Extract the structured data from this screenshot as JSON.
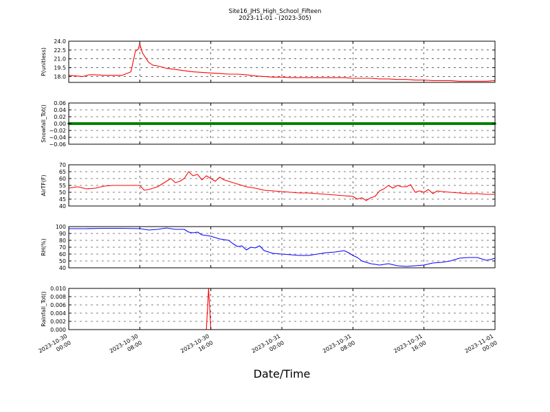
{
  "chart_data": {
    "type": "line",
    "title": "Site16_JHS_High_School_Fifteen",
    "subtitle": "2023-11-01 - (2023-305)",
    "xlabel": "Date/Time",
    "x_ticks": [
      {
        "hours": 0,
        "line1": "2023-10-30",
        "line2": "00:00"
      },
      {
        "hours": 8,
        "line1": "2023-10-30",
        "line2": "08:00"
      },
      {
        "hours": 16,
        "line1": "2023-10-30",
        "line2": "16:00"
      },
      {
        "hours": 24,
        "line1": "2023-10-31",
        "line2": "00:00"
      },
      {
        "hours": 32,
        "line1": "2023-10-31",
        "line2": "08:00"
      },
      {
        "hours": 40,
        "line1": "2023-10-31",
        "line2": "16:00"
      },
      {
        "hours": 48,
        "line1": "2023-11-01",
        "line2": "00:00"
      }
    ],
    "xlim_hours": [
      0,
      48
    ],
    "grid": true,
    "panels": [
      {
        "ylabel": "P(unitless)",
        "color": "#ff0000",
        "ylim": [
          17.0,
          24.0
        ],
        "yticks": [
          18.0,
          19.5,
          21.0,
          22.5,
          24.0
        ],
        "ytick_labels": [
          "18.0",
          "19.5",
          "21.0",
          "22.5",
          "24.0"
        ],
        "series": [
          {
            "x": [
              0,
              0.8,
              1.6,
              2.3,
              3,
              4,
              5,
              6,
              7,
              7.5,
              7.8,
              8.0,
              8.3,
              8.6,
              9,
              9.5,
              10,
              11,
              12,
              13,
              14,
              15,
              16,
              17,
              18,
              19,
              20,
              21,
              22,
              23,
              24,
              25,
              26,
              27,
              28,
              29,
              30,
              31,
              32,
              33,
              34,
              35,
              36,
              37,
              38,
              39,
              40,
              41,
              42,
              43,
              44,
              45,
              46,
              47,
              48
            ],
            "y": [
              18.2,
              18.1,
              18.0,
              18.3,
              18.3,
              18.2,
              18.2,
              18.2,
              18.8,
              22.3,
              22.6,
              23.6,
              22.0,
              21.3,
              20.4,
              19.9,
              19.8,
              19.4,
              19.2,
              19.0,
              18.8,
              18.7,
              18.6,
              18.5,
              18.4,
              18.4,
              18.3,
              18.1,
              18.0,
              17.9,
              17.9,
              17.8,
              17.8,
              17.8,
              17.8,
              17.8,
              17.8,
              17.8,
              17.7,
              17.7,
              17.7,
              17.6,
              17.6,
              17.5,
              17.5,
              17.4,
              17.4,
              17.3,
              17.3,
              17.3,
              17.2,
              17.2,
              17.2,
              17.2,
              17.3
            ]
          }
        ]
      },
      {
        "ylabel": "Snowfall_Tot()",
        "color": "#008000",
        "ylim": [
          -0.06,
          0.06
        ],
        "yticks": [
          -0.06,
          -0.04,
          -0.02,
          0.0,
          0.02,
          0.04,
          0.06
        ],
        "ytick_labels": [
          "−0.06",
          "−0.04",
          "−0.02",
          "0.00",
          "0.02",
          "0.04",
          "0.06"
        ],
        "series": [
          {
            "x": [
              0,
              48
            ],
            "y": [
              0.0,
              0.0
            ]
          }
        ]
      },
      {
        "ylabel": "AirTF(F)",
        "color": "#ff0000",
        "ylim": [
          40,
          70
        ],
        "yticks": [
          40,
          45,
          50,
          55,
          60,
          65,
          70
        ],
        "ytick_labels": [
          "40",
          "45",
          "50",
          "55",
          "60",
          "65",
          "70"
        ],
        "series": [
          {
            "x": [
              0,
              1,
              2,
              3,
              4,
              5,
              6,
              7,
              8,
              8.5,
              9,
              10,
              11,
              11.5,
              12,
              12.5,
              13,
              13.5,
              14,
              14.5,
              15,
              15.5,
              16,
              16.5,
              17,
              17.5,
              18,
              19,
              20,
              21,
              22,
              23,
              24,
              25,
              26,
              27,
              28,
              29,
              30,
              31,
              32,
              32.5,
              33,
              33.5,
              34,
              34.5,
              35,
              35.5,
              36,
              36.5,
              37,
              37.5,
              38,
              38.5,
              39,
              39.5,
              40,
              40.5,
              41,
              41.5,
              42,
              43,
              44,
              45,
              46,
              47,
              48
            ],
            "y": [
              53,
              54,
              52.5,
              53,
              54.5,
              55,
              55,
              55,
              55,
              51.5,
              52,
              54,
              58,
              60,
              57,
              58,
              60,
              65,
              62,
              63,
              59,
              62,
              60,
              58,
              61,
              59,
              58,
              56,
              54,
              53,
              51.5,
              51,
              50.5,
              50,
              49.5,
              49.5,
              49,
              48.5,
              48,
              47.5,
              47,
              45,
              46,
              44,
              46,
              47,
              51,
              52.5,
              55,
              53,
              55,
              54,
              54,
              55.5,
              50,
              51,
              50,
              52,
              49,
              51,
              50.5,
              50,
              49.5,
              49,
              49,
              48.5,
              48.5
            ]
          }
        ]
      },
      {
        "ylabel": "RH(%)",
        "color": "#0000ff",
        "ylim": [
          40,
          100
        ],
        "yticks": [
          40,
          50,
          60,
          70,
          80,
          90,
          100
        ],
        "ytick_labels": [
          "40",
          "50",
          "60",
          "70",
          "80",
          "90",
          "100"
        ],
        "series": [
          {
            "x": [
              0,
              2,
              4,
              6,
              8,
              9,
              10,
              11,
              12,
              13,
              13.5,
              14,
              14.5,
              15,
              16,
              17,
              18,
              18.5,
              19,
              19.5,
              20,
              20.5,
              21,
              21.5,
              22,
              23,
              24,
              25,
              26,
              27,
              28,
              29,
              30,
              31,
              31.5,
              32,
              32.5,
              33,
              34,
              35,
              36,
              37,
              38,
              39,
              40,
              41,
              42,
              43,
              44,
              45,
              46,
              47,
              47.5,
              48
            ],
            "y": [
              97,
              97,
              97.5,
              97.5,
              97,
              95,
              96,
              98,
              96,
              96,
              92,
              91,
              92,
              88,
              86,
              82,
              80,
              75,
              71,
              72,
              66,
              70,
              69,
              72,
              65,
              61,
              60,
              59,
              58,
              58,
              60,
              62,
              63,
              65,
              62,
              58,
              55,
              50,
              46,
              44,
              46,
              43,
              42,
              43,
              44,
              47,
              48,
              50,
              54,
              55,
              55,
              51,
              52,
              54
            ]
          }
        ]
      },
      {
        "ylabel": "Rainfall_Tot()",
        "color": "#ff0000",
        "ylim": [
          0.0,
          0.01
        ],
        "yticks": [
          0.0,
          0.002,
          0.004,
          0.006,
          0.008,
          0.01
        ],
        "ytick_labels": [
          "0.000",
          "0.002",
          "0.004",
          "0.006",
          "0.008",
          "0.010"
        ],
        "series": [
          {
            "x": [
              0,
              15.5,
              15.75,
              16.0,
              48
            ],
            "y": [
              0.0,
              0.0,
              0.01,
              0.0,
              0.0
            ]
          }
        ]
      }
    ]
  }
}
